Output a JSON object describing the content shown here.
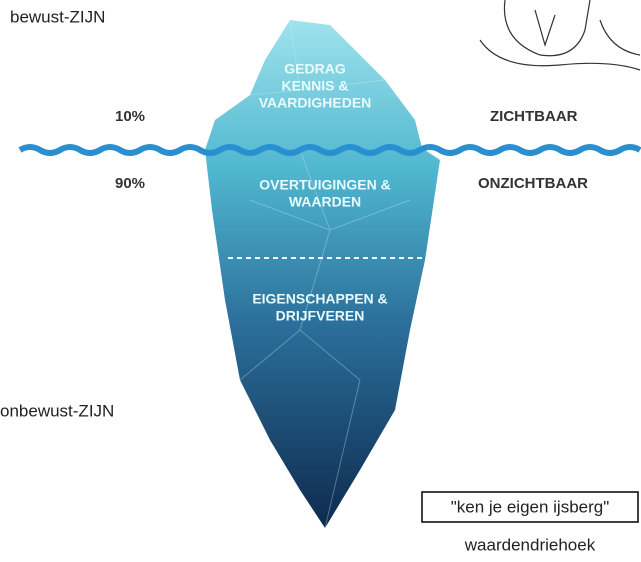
{
  "labels": {
    "top_left": "bewust-ZIJN",
    "bottom_left": "onbewust-ZIJN",
    "visible_pct": "10%",
    "hidden_pct": "90%",
    "visible": "ZICHTBAAR",
    "hidden": "ONZICHTBAAR"
  },
  "iceberg": {
    "layers": [
      {
        "lines": [
          "GEDRAG",
          "KENNIS &",
          "VAARDIGHEDEN"
        ]
      },
      {
        "lines": [
          "OVERTUIGINGEN &",
          "WAARDEN"
        ]
      },
      {
        "lines": [
          "EIGENSCHAPPEN &",
          "DRIJFVEREN"
        ]
      }
    ]
  },
  "footer": {
    "boxed": "\"ken je eigen ijsberg\"",
    "caption": "waardendriehoek"
  }
}
